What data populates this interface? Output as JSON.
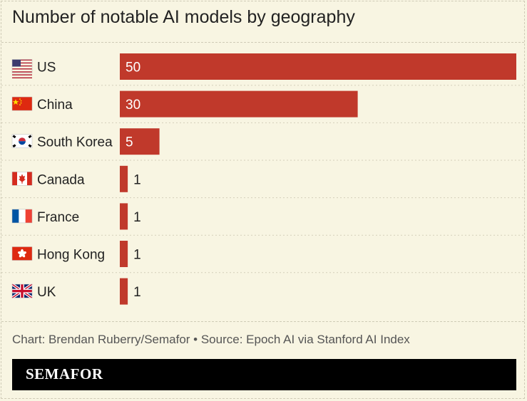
{
  "header": {
    "title": "Number of notable AI models by geography"
  },
  "footer": {
    "credit": "Chart: Brendan Ruberry/Semafor • Source: Epoch AI via Stanford AI Index",
    "brand": "SEMAFOR"
  },
  "colors": {
    "bar": "#c0392b",
    "background": "#f8f5e2",
    "value_inside": "#ffffff",
    "value_outside": "#222222"
  },
  "chart_data": {
    "type": "bar",
    "orientation": "horizontal",
    "categories": [
      "US",
      "China",
      "South Korea",
      "Canada",
      "France",
      "Hong Kong",
      "UK"
    ],
    "flags": [
      "us-flag-icon",
      "china-flag-icon",
      "south-korea-flag-icon",
      "canada-flag-icon",
      "france-flag-icon",
      "hong-kong-flag-icon",
      "uk-flag-icon"
    ],
    "values": [
      50,
      30,
      5,
      1,
      1,
      1,
      1
    ],
    "title": "Number of notable AI models by geography",
    "xlim": [
      0,
      50
    ],
    "grid": false,
    "legend": "none"
  }
}
